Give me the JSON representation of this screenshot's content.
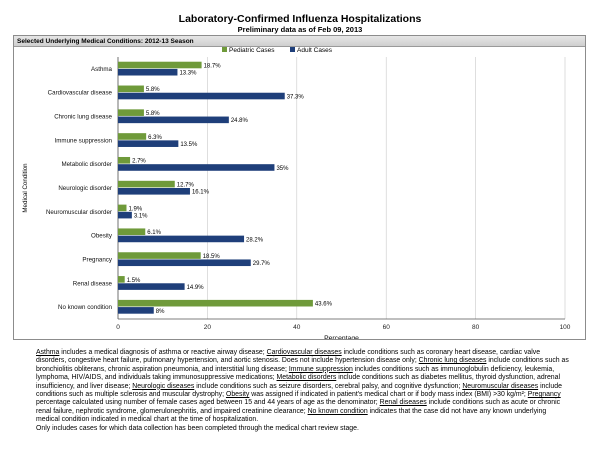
{
  "chart_data": {
    "type": "bar",
    "orientation": "horizontal",
    "title": "Laboratory-Confirmed Influenza Hospitalizations",
    "subtitle": "Preliminary data as of Feb 09, 2013",
    "panel_title": "Selected Underlying Medical Conditions: 2012-13 Season",
    "xlabel": "Percentage",
    "ylabel": "Medical Condition",
    "xlim": [
      0,
      100
    ],
    "xticks": [
      0,
      20,
      40,
      60,
      80,
      100
    ],
    "grid": true,
    "legend_position": "top-right",
    "categories": [
      "Asthma",
      "Cardiovascular disease",
      "Chronic lung disease",
      "Immune suppression",
      "Metabolic disorder",
      "Neurologic disorder",
      "Neuromuscular disorder",
      "Obesity",
      "Pregnancy",
      "Renal disease",
      "No known condition"
    ],
    "series": [
      {
        "name": "Pediatric Cases",
        "color": "#6f9a3a",
        "values": [
          18.7,
          5.8,
          5.8,
          6.3,
          2.7,
          12.7,
          1.9,
          6.1,
          18.5,
          1.5,
          43.6
        ],
        "labels": [
          "18.7%",
          "5.8%",
          "5.8%",
          "6.3%",
          "2.7%",
          "12.7%",
          "1.9%",
          "6.1%",
          "18.5%",
          "1.5%",
          "43.6%"
        ]
      },
      {
        "name": "Adult Cases",
        "color": "#1f3f7a",
        "values": [
          13.3,
          37.3,
          24.8,
          13.5,
          35,
          16.1,
          3.1,
          28.2,
          29.7,
          14.9,
          8
        ],
        "labels": [
          "13.3%",
          "37.3%",
          "24.8%",
          "13.5%",
          "35%",
          "16.1%",
          "3.1%",
          "28.2%",
          "29.7%",
          "14.9%",
          "8%"
        ]
      }
    ]
  },
  "footnote": {
    "segments": [
      {
        "t": "Asthma",
        "u": true
      },
      {
        "t": " includes a medical diagnosis of asthma or reactive airway disease; "
      },
      {
        "t": "Cardiovascular diseases",
        "u": true
      },
      {
        "t": " include conditions such as coronary heart disease, cardiac valve disorders, congestive heart failure, pulmonary hypertension, and aortic stenosis.  Does not include hypertension disease only; "
      },
      {
        "t": "Chronic lung diseases",
        "u": true
      },
      {
        "t": " include conditions such as bronchiolitis obliterans, chronic aspiration pneumonia, and interstitial lung disease; "
      },
      {
        "t": "Immune suppression",
        "u": true
      },
      {
        "t": " includes conditions such as immunoglobulin deficiency, leukemia, lymphoma, HIV/AIDS, and individuals taking immunosuppressive medications; "
      },
      {
        "t": "Metabolic disorders",
        "u": true
      },
      {
        "t": " include conditions such as diabetes mellitus, thyroid dysfunction, adrenal insufficiency, and liver disease; "
      },
      {
        "t": "Neurologic diseases",
        "u": true
      },
      {
        "t": " include conditions such as seizure disorders, cerebral palsy, and cognitive dysfunction; "
      },
      {
        "t": "Neuromuscular diseases",
        "u": true
      },
      {
        "t": " include conditions such as multiple sclerosis and muscular dystrophy; "
      },
      {
        "t": "Obesity",
        "u": true
      },
      {
        "t": " was assigned if indicated in patient's medical chart or if body mass index (BMI) >30 kg/m²; "
      },
      {
        "t": "Pregnancy",
        "u": true
      },
      {
        "t": " percentage calculated using number of female cases aged between 15 and 44 years of age as the denominator; "
      },
      {
        "t": "Renal diseases",
        "u": true
      },
      {
        "t": " include conditions such as acute or chronic renal failure, nephrotic syndrome, glomerulonephritis, and impaired creatinine clearance; "
      },
      {
        "t": "No known condition",
        "u": true
      },
      {
        "t": " indicates that the case did not have any known underlying medical condition indicated in medical chart at the time of hospitalization."
      }
    ],
    "last_line": "Only includes cases for which data collection has been completed through the medical chart review stage."
  }
}
